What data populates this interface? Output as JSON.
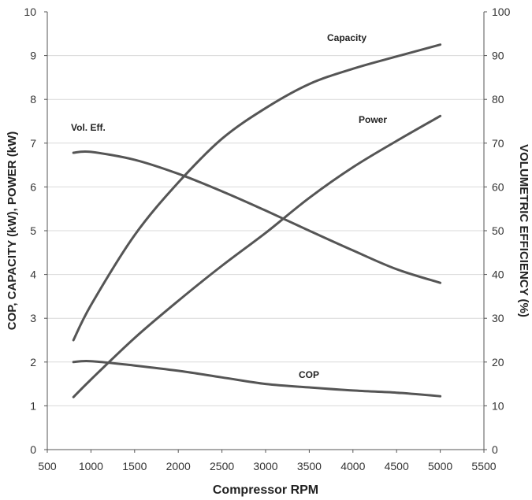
{
  "chart_data": {
    "type": "line",
    "xlabel": "Compressor RPM",
    "ylabel_left": "COP, CAPACITY (kW), POWER (kW)",
    "ylabel_right": "VOLUMETRIC EFFICIENCY (%)",
    "xlim": [
      500,
      5500
    ],
    "ylim_left": [
      0,
      10
    ],
    "ylim_right": [
      0,
      100
    ],
    "x_ticks": [
      "500",
      "1000",
      "1500",
      "2000",
      "2500",
      "3000",
      "3500",
      "4000",
      "4500",
      "5000",
      "5500"
    ],
    "y_ticks_left": [
      "0",
      "1",
      "2",
      "3",
      "4",
      "5",
      "6",
      "7",
      "8",
      "9",
      "10"
    ],
    "y_ticks_right": [
      "0",
      "10",
      "20",
      "30",
      "40",
      "50",
      "60",
      "70",
      "80",
      "90",
      "100"
    ],
    "grid": "horizontal",
    "line_color": "#555555",
    "series": [
      {
        "name": "Capacity",
        "axis": "left",
        "x": [
          800,
          1000,
          1500,
          2000,
          2500,
          3000,
          3500,
          4000,
          4500,
          5000
        ],
        "y": [
          2.5,
          3.3,
          4.9,
          6.1,
          7.1,
          7.8,
          8.35,
          8.7,
          8.98,
          9.25
        ]
      },
      {
        "name": "Power",
        "axis": "left",
        "x": [
          800,
          1000,
          1500,
          2000,
          2500,
          3000,
          3500,
          4000,
          4500,
          5000
        ],
        "y": [
          1.2,
          1.6,
          2.55,
          3.4,
          4.2,
          4.95,
          5.75,
          6.45,
          7.05,
          7.62
        ]
      },
      {
        "name": "Vol. Eff.",
        "axis": "right",
        "x": [
          800,
          1000,
          1500,
          2000,
          2500,
          3000,
          3500,
          4000,
          4500,
          5000
        ],
        "y": [
          67.8,
          68,
          66.2,
          63,
          59,
          54.6,
          50,
          45.5,
          41.2,
          38.1
        ]
      },
      {
        "name": "COP",
        "axis": "left",
        "x": [
          800,
          1000,
          1500,
          2000,
          2500,
          3000,
          3500,
          4000,
          4500,
          5000
        ],
        "y": [
          2.0,
          2.02,
          1.92,
          1.8,
          1.65,
          1.5,
          1.42,
          1.35,
          1.3,
          1.22
        ]
      }
    ]
  }
}
